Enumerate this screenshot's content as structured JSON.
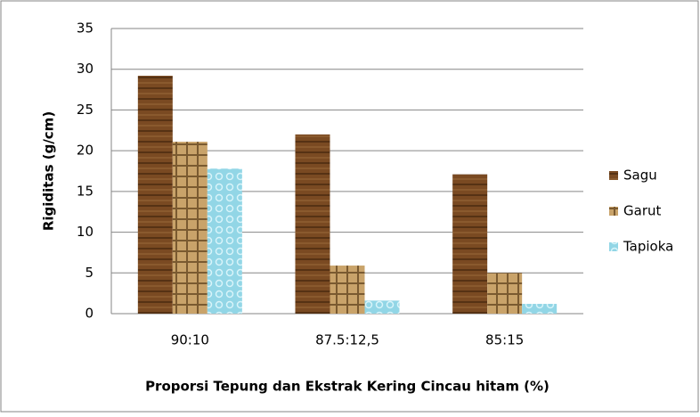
{
  "chart_data": {
    "type": "bar",
    "categories": [
      "90:10",
      "87.5:12,5",
      "85:15"
    ],
    "series": [
      {
        "name": "Sagu",
        "color": "#7a4a22",
        "values": [
          29.2,
          22,
          17.1
        ]
      },
      {
        "name": "Garut",
        "color": "#c9a36a",
        "values": [
          21.1,
          5.9,
          5.0
        ]
      },
      {
        "name": "Tapioka",
        "color": "#92d6e6",
        "values": [
          17.8,
          1.6,
          1.2
        ]
      }
    ],
    "x_label": "Proporsi Tepung dan Ekstrak Kering Cincau hitam (%)",
    "y_label": "Rigiditas (g/cm)",
    "ylim": [
      0,
      35
    ],
    "yticks": [
      0,
      5,
      10,
      15,
      20,
      25,
      30,
      35
    ],
    "grid": true,
    "legend": "right"
  }
}
